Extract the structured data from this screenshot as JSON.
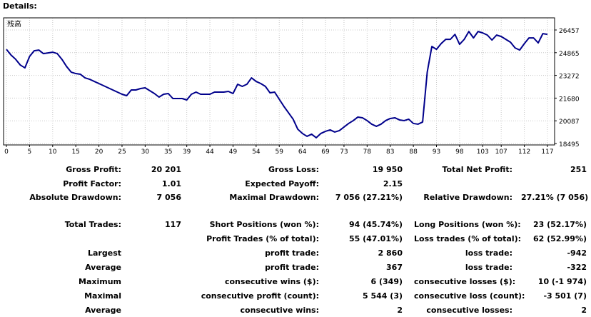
{
  "header": {
    "title": "Details:"
  },
  "chart_data": {
    "type": "line",
    "title": "残高",
    "x_ticks": [
      "0",
      "5",
      "10",
      "15",
      "20",
      "25",
      "30",
      "35",
      "39",
      "44",
      "49",
      "54",
      "59",
      "64",
      "69",
      "73",
      "78",
      "83",
      "88",
      "93",
      "98",
      "103",
      "107",
      "112",
      "117"
    ],
    "y_ticks": [
      "26457",
      "24865",
      "23272",
      "21680",
      "20087",
      "18495"
    ],
    "ylim": [
      18495,
      26457
    ],
    "xlim": [
      0,
      117
    ],
    "grid": true,
    "series": [
      {
        "color": "#00008B",
        "x": [
          0,
          1,
          2,
          3,
          4,
          5,
          6,
          7,
          8,
          9,
          10,
          11,
          12,
          13,
          14,
          15,
          16,
          17,
          18,
          19,
          20,
          21,
          22,
          23,
          24,
          25,
          26,
          27,
          28,
          29,
          30,
          31,
          32,
          33,
          34,
          35,
          36,
          37,
          38,
          39,
          40,
          41,
          42,
          43,
          44,
          45,
          46,
          47,
          48,
          49,
          50,
          51,
          52,
          53,
          54,
          55,
          56,
          57,
          58,
          59,
          60,
          61,
          62,
          63,
          64,
          65,
          66,
          67,
          68,
          69,
          70,
          71,
          72,
          73,
          74,
          75,
          76,
          77,
          78,
          79,
          80,
          81,
          82,
          83,
          84,
          85,
          86,
          87,
          88,
          89,
          90,
          91,
          92,
          93,
          94,
          95,
          96,
          97,
          98,
          99,
          100,
          101,
          102,
          103,
          104,
          105,
          106,
          107,
          108,
          109,
          110,
          111,
          112,
          113,
          114,
          115,
          116,
          117
        ],
        "y": [
          25100,
          24700,
          24400,
          24000,
          23800,
          24600,
          25000,
          25050,
          24800,
          24850,
          24900,
          24800,
          24400,
          23900,
          23500,
          23400,
          23350,
          23100,
          23000,
          22850,
          22700,
          22550,
          22400,
          22250,
          22100,
          21950,
          21850,
          22250,
          22250,
          22350,
          22400,
          22200,
          22000,
          21750,
          21950,
          22000,
          21650,
          21650,
          21650,
          21550,
          21950,
          22100,
          21950,
          21950,
          21950,
          22100,
          22100,
          22100,
          22150,
          22000,
          22650,
          22500,
          22650,
          23100,
          22850,
          22700,
          22500,
          22050,
          22100,
          21600,
          21100,
          20650,
          20200,
          19500,
          19200,
          19000,
          19150,
          18900,
          19200,
          19350,
          19450,
          19300,
          19400,
          19650,
          19900,
          20100,
          20350,
          20300,
          20100,
          19850,
          19700,
          19850,
          20100,
          20250,
          20300,
          20150,
          20100,
          20200,
          19900,
          19850,
          20000,
          23500,
          25300,
          25100,
          25500,
          25800,
          25800,
          26150,
          25450,
          25800,
          26350,
          25900,
          26350,
          26250,
          26100,
          25750,
          26100,
          26000,
          25800,
          25600,
          25200,
          25050,
          25500,
          25900,
          25900,
          25550,
          26200,
          26150
        ]
      }
    ]
  },
  "stats": {
    "gross_profit": {
      "label": "Gross Profit:",
      "value": "20 201"
    },
    "gross_loss": {
      "label": "Gross Loss:",
      "value": "19 950"
    },
    "total_net_profit": {
      "label": "Total Net Profit:",
      "value": "251"
    },
    "profit_factor": {
      "label": "Profit Factor:",
      "value": "1.01"
    },
    "expected_payoff": {
      "label": "Expected Payoff:",
      "value": "2.15"
    },
    "absolute_drawdown": {
      "label": "Absolute Drawdown:",
      "value": "7 056"
    },
    "maximal_drawdown": {
      "label": "Maximal Drawdown:",
      "value": "7 056 (27.21%)"
    },
    "relative_drawdown": {
      "label": "Relative Drawdown:",
      "value": "27.21% (7 056)"
    },
    "total_trades": {
      "label": "Total Trades:",
      "value": "117"
    },
    "short_positions": {
      "label": "Short Positions (won %):",
      "value": "94 (45.74%)"
    },
    "long_positions": {
      "label": "Long Positions (won %):",
      "value": "23 (52.17%)"
    },
    "profit_trades": {
      "label": "Profit Trades (% of total):",
      "value": "55 (47.01%)"
    },
    "loss_trades": {
      "label": "Loss trades (% of total):",
      "value": "62 (52.99%)"
    },
    "largest": {
      "label": "Largest",
      "profit_label": "profit trade:",
      "profit_value": "2 860",
      "loss_label": "loss trade:",
      "loss_value": "-942"
    },
    "average": {
      "label": "Average",
      "profit_label": "profit trade:",
      "profit_value": "367",
      "loss_label": "loss trade:",
      "loss_value": "-322"
    },
    "maximum": {
      "label": "Maximum",
      "profit_label": "consecutive wins ($):",
      "profit_value": "6 (349)",
      "loss_label": "consecutive losses ($):",
      "loss_value": "10 (-1 974)"
    },
    "maximal": {
      "label": "Maximal",
      "profit_label": "consecutive profit (count):",
      "profit_value": "5 544 (3)",
      "loss_label": "consecutive loss (count):",
      "loss_value": "-3 501 (7)"
    },
    "average2": {
      "label": "Average",
      "profit_label": "consecutive wins:",
      "profit_value": "2",
      "loss_label": "consecutive losses:",
      "loss_value": "2"
    }
  }
}
